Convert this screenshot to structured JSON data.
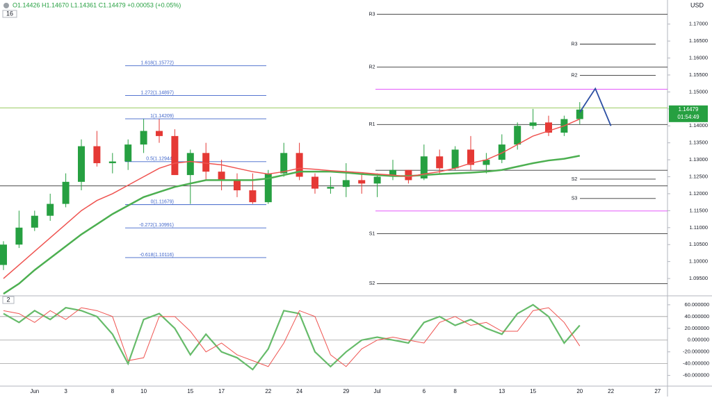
{
  "chart_data": {
    "type": "candlestick",
    "legend_text": "O1.14426 H1.14670 L1.14361 C1.14479 +0.00053 (+0.05%)",
    "pane_badges": [
      "16",
      "2"
    ],
    "currency": "USD",
    "last_price": {
      "value": 1.14479,
      "label": "1.14479"
    },
    "countdown": "01:54:49",
    "categories": [
      null,
      null,
      "Jun",
      null,
      "3",
      null,
      null,
      "8",
      null,
      "10",
      null,
      null,
      "15",
      null,
      "17",
      null,
      null,
      "22",
      null,
      "24",
      null,
      null,
      "29",
      null,
      "Jul",
      null,
      null,
      "6",
      null,
      "8",
      null,
      null,
      "13",
      null,
      "15",
      null,
      null,
      "20",
      null,
      "22",
      null,
      null,
      "27"
    ],
    "open": [
      1.099,
      1.105,
      1.11,
      1.1135,
      1.117,
      1.1235,
      1.134,
      1.129,
      1.1295,
      1.1345,
      1.1385,
      1.137,
      1.1255,
      1.132,
      1.1265,
      1.124,
      1.121,
      1.1175,
      1.126,
      1.132,
      1.125,
      1.1215,
      1.122,
      1.124,
      1.123,
      1.125,
      1.127,
      1.1245,
      1.131,
      1.1275,
      1.133,
      1.1285,
      1.13,
      1.1345,
      1.14,
      1.141,
      1.138,
      1.142,
      null,
      null,
      null,
      null,
      null
    ],
    "high": [
      1.106,
      1.115,
      1.115,
      1.12,
      1.126,
      1.136,
      1.1385,
      1.132,
      1.136,
      1.142,
      1.142,
      1.139,
      1.133,
      1.135,
      1.13,
      1.126,
      1.126,
      1.127,
      1.135,
      1.135,
      1.126,
      1.125,
      1.129,
      1.126,
      1.126,
      1.13,
      1.127,
      1.1345,
      1.133,
      1.134,
      1.137,
      1.132,
      1.1375,
      1.141,
      1.145,
      1.143,
      1.143,
      1.147,
      null,
      null,
      null,
      null,
      null
    ],
    "low": [
      1.0975,
      1.104,
      1.109,
      1.112,
      1.116,
      1.121,
      1.128,
      1.126,
      1.127,
      1.132,
      1.135,
      1.126,
      1.117,
      1.124,
      1.121,
      1.119,
      1.117,
      1.117,
      1.125,
      1.124,
      1.12,
      1.12,
      1.119,
      1.12,
      1.119,
      1.124,
      1.123,
      1.124,
      1.126,
      1.127,
      1.127,
      1.126,
      1.129,
      1.133,
      1.139,
      1.137,
      1.137,
      1.1405,
      null,
      null,
      null,
      null,
      null
    ],
    "close": [
      1.105,
      1.11,
      1.1135,
      1.117,
      1.1235,
      1.134,
      1.129,
      1.1295,
      1.1345,
      1.1385,
      1.137,
      1.1255,
      1.132,
      1.1265,
      1.124,
      1.121,
      1.1175,
      1.126,
      1.132,
      1.125,
      1.1215,
      1.122,
      1.124,
      1.123,
      1.125,
      1.127,
      1.124,
      1.131,
      1.1275,
      1.133,
      1.1285,
      1.13,
      1.1345,
      1.14,
      1.141,
      1.138,
      1.142,
      1.1448,
      null,
      null,
      null,
      null,
      null
    ],
    "up_color": "#26a041",
    "down_color": "#e53935",
    "series": [
      {
        "color": "#4caf50",
        "values": [
          1.0905,
          1.0935,
          1.0975,
          1.101,
          1.1045,
          1.108,
          1.111,
          1.114,
          1.1165,
          1.119,
          1.1205,
          1.122,
          1.123,
          1.124,
          1.124,
          1.124,
          1.124,
          1.1245,
          1.1255,
          1.1265,
          1.1265,
          1.1265,
          1.1262,
          1.1258,
          1.1255,
          1.1252,
          1.1252,
          1.1255,
          1.1258,
          1.126,
          1.1262,
          1.1265,
          1.127,
          1.128,
          1.129,
          1.1298,
          1.1303,
          1.1312,
          null,
          null,
          null,
          null,
          null
        ]
      },
      {
        "color": "#ef5350",
        "values": [
          1.095,
          1.099,
          1.103,
          1.107,
          1.111,
          1.115,
          1.118,
          1.12,
          1.1225,
          1.125,
          1.1275,
          1.129,
          1.1295,
          1.129,
          1.1285,
          1.1275,
          1.1265,
          1.1258,
          1.1265,
          1.1275,
          1.1272,
          1.1268,
          1.1265,
          1.1262,
          1.1258,
          1.1255,
          1.125,
          1.1258,
          1.1265,
          1.1275,
          1.129,
          1.13,
          1.132,
          1.1345,
          1.137,
          1.1385,
          1.14,
          1.142,
          null,
          null,
          null,
          null,
          null
        ]
      },
      {
        "color": "#2c4fa3",
        "values": [
          null,
          null,
          null,
          null,
          null,
          null,
          null,
          null,
          null,
          null,
          null,
          null,
          null,
          null,
          null,
          null,
          null,
          null,
          null,
          null,
          null,
          null,
          null,
          null,
          null,
          null,
          null,
          null,
          null,
          null,
          null,
          null,
          null,
          null,
          null,
          null,
          null,
          1.144,
          1.151,
          1.14,
          null,
          null,
          null
        ]
      }
    ],
    "fib_levels": [
      {
        "value": 1.15772,
        "label": "1.618(1.15772)"
      },
      {
        "value": 1.14897,
        "label": "1.272(1.14897)"
      },
      {
        "value": 1.14209,
        "label": "1(1.14209)"
      },
      {
        "value": 1.12944,
        "label": "0.5(1.12944)"
      },
      {
        "value": 1.11679,
        "label": "0(1.11679)"
      },
      {
        "value": 1.10991,
        "label": "-0.272(1.10991)"
      },
      {
        "value": 1.10116,
        "label": "-0.618(1.10116)"
      }
    ],
    "fib_color": "#3d63c9",
    "pivot_levels": [
      {
        "value": 1.1729,
        "label": "R3"
      },
      {
        "value": 1.1573,
        "label": "R2"
      },
      {
        "value": 1.1404,
        "label": "R1"
      },
      {
        "value": 1.1082,
        "label": "S1"
      },
      {
        "value": 1.0935,
        "label": "S2"
      }
    ],
    "weekly_pivots": [
      {
        "value": 1.1641,
        "label": "R3"
      },
      {
        "value": 1.1549,
        "label": "R2"
      },
      {
        "value": 1.1243,
        "label": "S2"
      },
      {
        "value": 1.1186,
        "label": "S3"
      }
    ],
    "extra_lines": [
      {
        "value": 1.1508,
        "color": "#e040fb"
      },
      {
        "value": 1.1149,
        "color": "#e040fb"
      },
      {
        "value": 1.1269,
        "color": "#333333"
      }
    ],
    "full_lines": [
      {
        "value": 1.1453,
        "color": "#8bc34a"
      },
      {
        "value": 1.1223,
        "color": "#333333"
      }
    ],
    "ylim": [
      1.0901,
      1.1771
    ],
    "yticks": [
      {
        "value": 1.17,
        "label": "1.17000"
      },
      {
        "value": 1.165,
        "label": "1.16500"
      },
      {
        "value": 1.16,
        "label": "1.16000"
      },
      {
        "value": 1.155,
        "label": "1.15500"
      },
      {
        "value": 1.15,
        "label": "1.15000"
      },
      {
        "value": 1.145,
        "label": "1.14500"
      },
      {
        "value": 1.14,
        "label": "1.14000"
      },
      {
        "value": 1.135,
        "label": "1.13500"
      },
      {
        "value": 1.13,
        "label": "1.13000"
      },
      {
        "value": 1.125,
        "label": "1.12500"
      },
      {
        "value": 1.12,
        "label": "1.12000"
      },
      {
        "value": 1.115,
        "label": "1.11500"
      },
      {
        "value": 1.11,
        "label": "1.11000"
      },
      {
        "value": 1.105,
        "label": "1.10500"
      },
      {
        "value": 1.1,
        "label": "1.10000"
      },
      {
        "value": 1.095,
        "label": "1.09500"
      }
    ],
    "oscillator": {
      "series": [
        {
          "color": "#66bb6a",
          "values": [
            45,
            30,
            50,
            35,
            55,
            50,
            40,
            10,
            -40,
            35,
            45,
            20,
            -25,
            10,
            -20,
            -30,
            -50,
            -15,
            50,
            45,
            -20,
            -45,
            -20,
            0,
            5,
            0,
            -5,
            30,
            40,
            25,
            35,
            20,
            10,
            45,
            60,
            40,
            -5,
            25,
            null,
            null,
            null,
            null,
            null
          ]
        },
        {
          "color": "#ef5350",
          "values": [
            50,
            45,
            30,
            50,
            35,
            55,
            50,
            40,
            -35,
            -30,
            40,
            40,
            15,
            -20,
            -5,
            -25,
            -35,
            -45,
            -5,
            50,
            40,
            -25,
            -45,
            -15,
            0,
            5,
            0,
            -5,
            30,
            40,
            25,
            30,
            15,
            15,
            50,
            55,
            30,
            -10,
            null,
            null,
            null,
            null,
            null
          ]
        }
      ],
      "ylim": [
        -77,
        74
      ],
      "yticks": [
        {
          "value": 60,
          "label": "60.000000"
        },
        {
          "value": 40,
          "label": "40.000000"
        },
        {
          "value": 20,
          "label": "20.000000"
        },
        {
          "value": 0,
          "label": "0.000000"
        },
        {
          "value": -20,
          "label": "-20.000000"
        },
        {
          "value": -40,
          "label": "-40.000000"
        },
        {
          "value": -60,
          "label": "-60.000000"
        }
      ]
    }
  }
}
